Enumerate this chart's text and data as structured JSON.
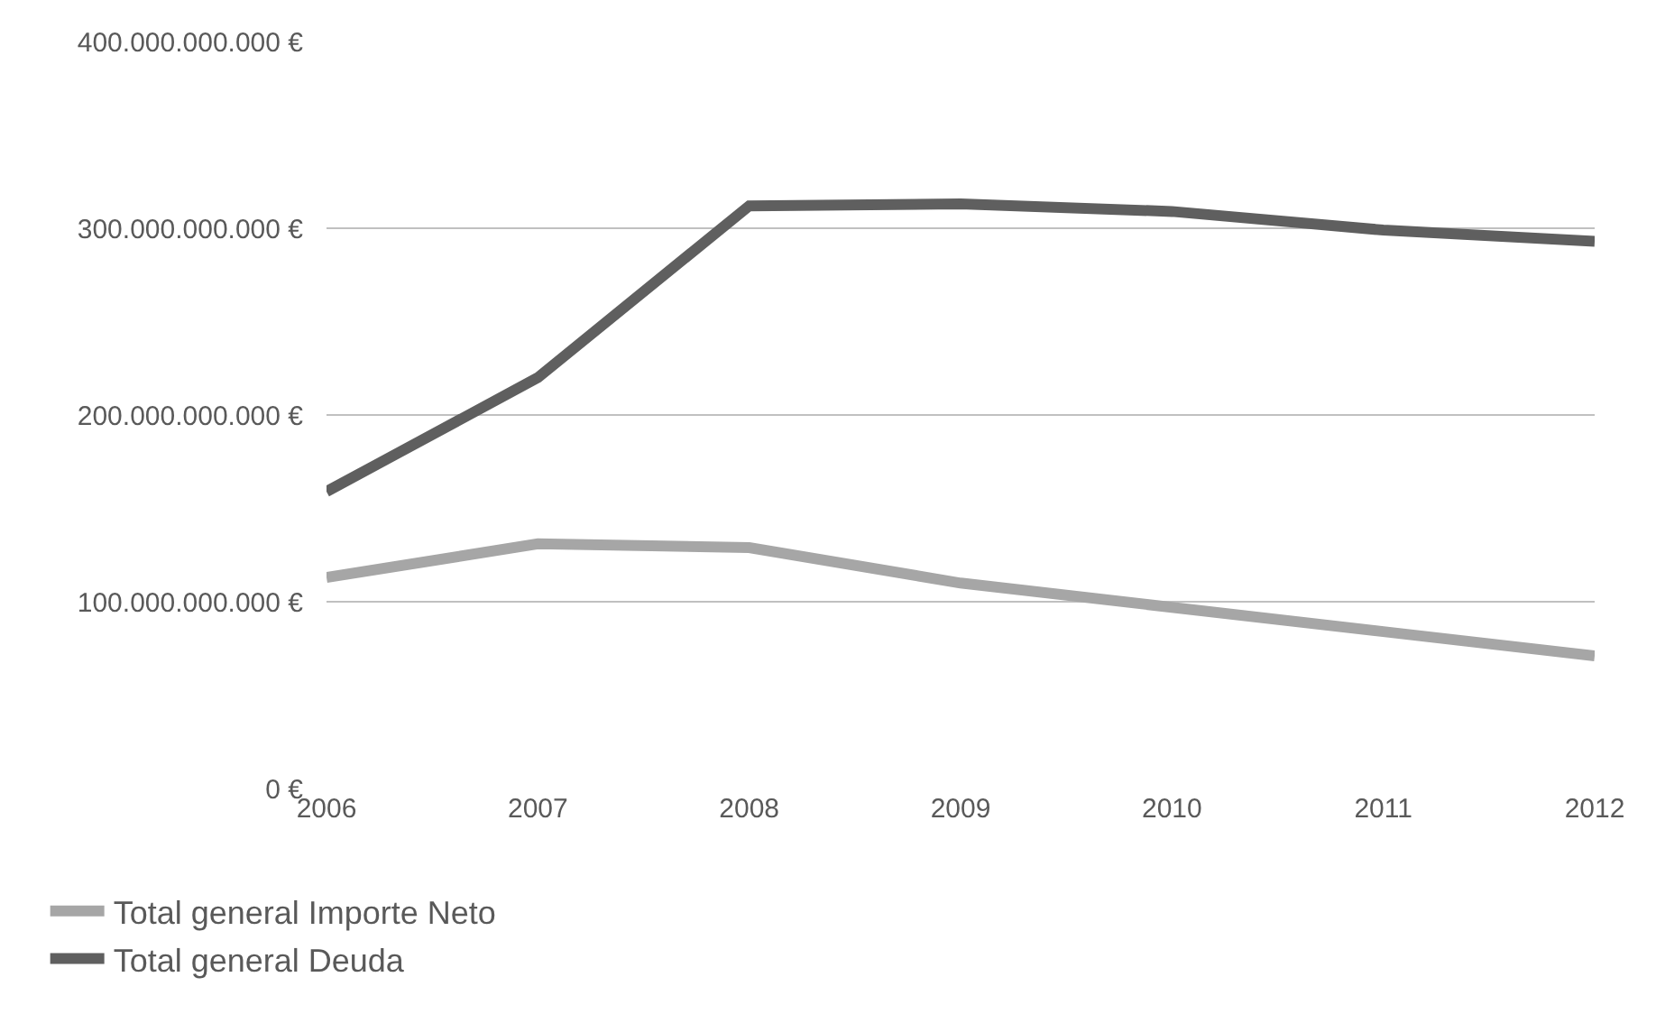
{
  "chart_data": {
    "type": "line",
    "categories": [
      "2006",
      "2007",
      "2008",
      "2009",
      "2010",
      "2011",
      "2012"
    ],
    "series": [
      {
        "name": "Total general Importe Neto",
        "color": "#a6a6a6",
        "values": [
          113000000000,
          131000000000,
          129000000000,
          110000000000,
          97000000000,
          84000000000,
          71000000000
        ]
      },
      {
        "name": "Total general Deuda",
        "color": "#5f5f5f",
        "values": [
          159000000000,
          220000000000,
          312000000000,
          313000000000,
          309000000000,
          299000000000,
          293000000000
        ]
      }
    ],
    "ylim": [
      0,
      400000000000
    ],
    "yticks": [
      {
        "value": 0,
        "label": "0 €"
      },
      {
        "value": 100000000000,
        "label": "100.000.000.000 €"
      },
      {
        "value": 200000000000,
        "label": "200.000.000.000 €"
      },
      {
        "value": 300000000000,
        "label": "300.000.000.000 €"
      },
      {
        "value": 400000000000,
        "label": "400.000.000.000 €"
      }
    ],
    "grid": "y",
    "legend": "bottom left",
    "marker": "none",
    "line_style": "solid"
  }
}
